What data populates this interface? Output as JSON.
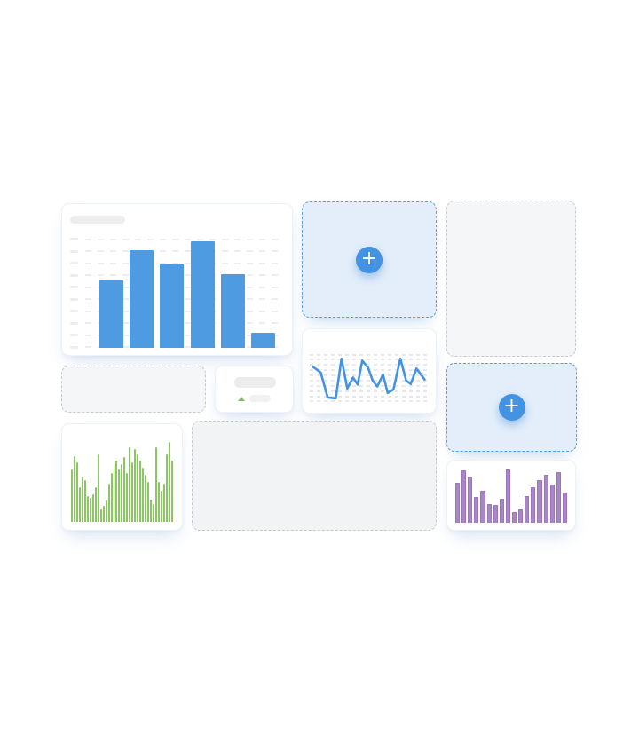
{
  "add_buttons": {
    "plus_label": "+",
    "icon": "plus-icon",
    "circle_color": "#4493e2"
  },
  "colors": {
    "canvas_bg": "#ffffff",
    "accent_blue": "#4493e2",
    "add_card_bg": "#e3eefa",
    "add_card_border": "#58a0e3",
    "empty_card_bg": "#f4f6f8",
    "empty_card_border": "#c6cad0",
    "placeholder_gray": "#ededee",
    "gridline_gray": "#ededef",
    "trend_green": "#7fbf62"
  },
  "cards": [
    {
      "name": "bar-chart-widget",
      "kind": "chart-widget",
      "chart": "featured-bar-chart",
      "has_title_placeholder": true
    },
    {
      "name": "add-widget-slot-1",
      "kind": "add-slot"
    },
    {
      "name": "empty-slot-top-right",
      "kind": "empty-slot"
    },
    {
      "name": "empty-slot-mid-left",
      "kind": "empty-slot"
    },
    {
      "name": "stat-widget",
      "kind": "stat-widget",
      "placeholders": [
        "value-bar",
        "trend-up-icon",
        "label-bar"
      ]
    },
    {
      "name": "line-chart-widget",
      "kind": "chart-widget",
      "chart": "line-chart"
    },
    {
      "name": "add-widget-slot-2",
      "kind": "add-slot"
    },
    {
      "name": "green-bars-widget",
      "kind": "chart-widget",
      "chart": "green-mini-bars"
    },
    {
      "name": "empty-slot-bottom",
      "kind": "empty-slot"
    },
    {
      "name": "purple-bars-widget",
      "kind": "chart-widget",
      "chart": "purple-mini-bars"
    }
  ],
  "chart_data": [
    {
      "id": "featured-bar-chart",
      "type": "bar",
      "values": [
        62,
        89,
        77,
        97,
        67,
        14
      ],
      "ylim": [
        0,
        100
      ],
      "color": "#4f9be1",
      "grid": true,
      "gridline_rows": 10,
      "legend": false,
      "title": ""
    },
    {
      "id": "line-chart",
      "type": "line",
      "x": [
        1,
        8,
        14,
        21,
        26,
        31,
        36,
        40,
        44,
        49,
        53,
        57,
        62,
        66,
        71,
        77,
        82,
        86,
        91,
        98
      ],
      "values": [
        73,
        61,
        11,
        9,
        89,
        29,
        51,
        37,
        85,
        71,
        45,
        33,
        57,
        20,
        27,
        89,
        45,
        38,
        69,
        47
      ],
      "ylim": [
        0,
        100
      ],
      "color": "#4493e2",
      "grid": true,
      "gridline_rows": 10,
      "legend": false
    },
    {
      "id": "green-mini-bars",
      "type": "bar",
      "values": [
        60,
        76,
        68,
        40,
        52,
        48,
        30,
        28,
        32,
        40,
        78,
        14,
        18,
        24,
        44,
        56,
        64,
        70,
        60,
        66,
        74,
        56,
        86,
        68,
        84,
        78,
        70,
        62,
        54,
        46,
        26,
        20,
        86,
        46,
        36,
        44,
        78,
        92,
        70
      ],
      "ylim": [
        0,
        100
      ],
      "color": "#8ec468",
      "grid": false,
      "gridline_rows": 0,
      "legend": false
    },
    {
      "id": "purple-mini-bars",
      "type": "bar",
      "values": [
        72,
        95,
        84,
        47,
        58,
        34,
        32,
        44,
        97,
        20,
        25,
        48,
        65,
        78,
        87,
        70,
        92,
        55
      ],
      "ylim": [
        0,
        100
      ],
      "color": "#a886c8",
      "bar_border": "#9b74bc",
      "grid": false,
      "gridline_rows": 0,
      "legend": false
    }
  ]
}
